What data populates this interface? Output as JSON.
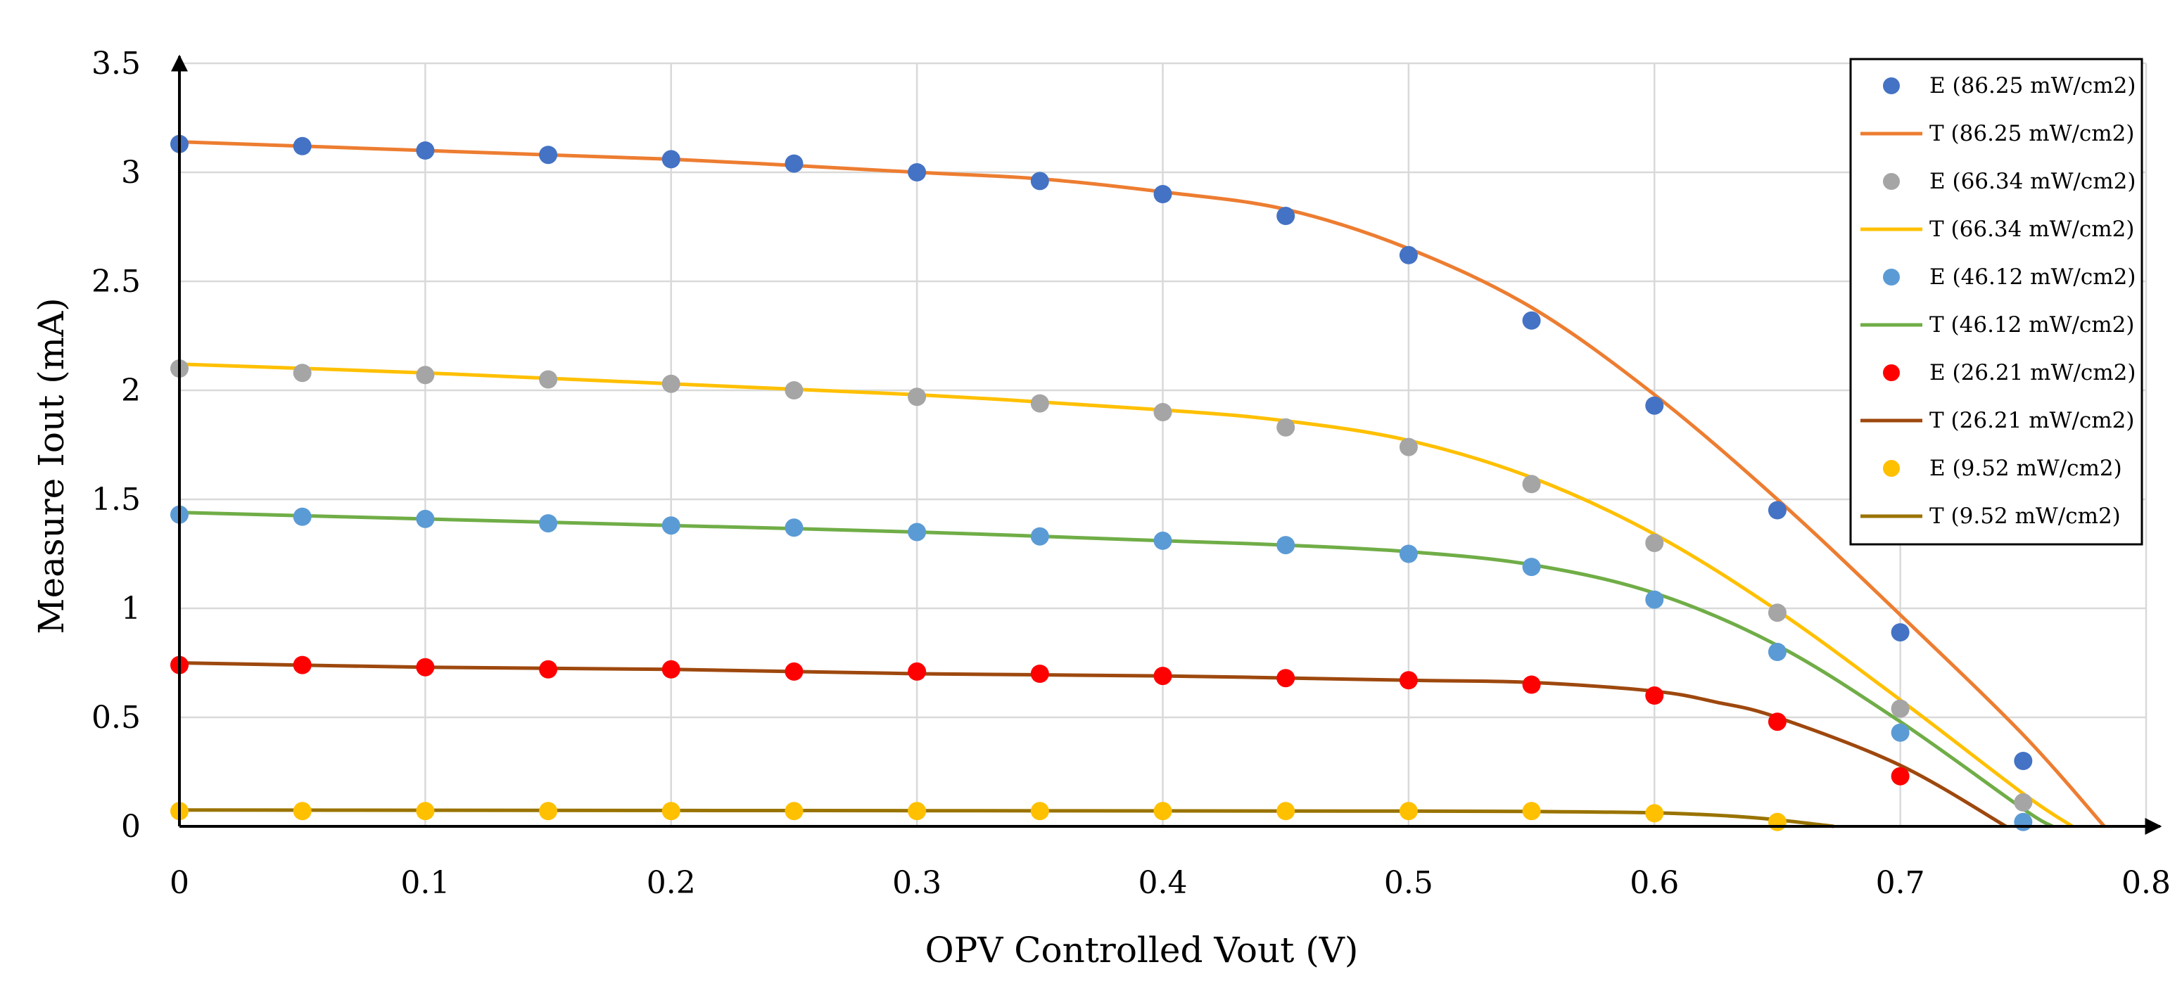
{
  "chart_data": {
    "type": "scatter",
    "title": "",
    "xlabel": "OPV Controlled Vout (V)",
    "ylabel": "Measure Iout (mA)",
    "xlim": [
      0,
      0.8
    ],
    "ylim": [
      0,
      3.5
    ],
    "x_ticks": [
      0,
      0.1,
      0.2,
      0.3,
      0.4,
      0.5,
      0.6,
      0.7,
      0.8
    ],
    "y_ticks": [
      0,
      0.5,
      1,
      1.5,
      2,
      2.5,
      3,
      3.5
    ],
    "x_tick_labels": [
      "0",
      "0.1",
      "0.2",
      "0.3",
      "0.4",
      "0.5",
      "0.6",
      "0.7",
      "0.8"
    ],
    "y_tick_labels": [
      "0",
      "0.5",
      "1",
      "1.5",
      "2",
      "2.5",
      "3",
      "3.5"
    ],
    "grid": true,
    "legend_position": "top-right",
    "series": [
      {
        "name": "E (86.25 mW/cm2)",
        "kind": "points",
        "color": "#4472C4",
        "x": [
          0,
          0.05,
          0.1,
          0.15,
          0.2,
          0.25,
          0.3,
          0.35,
          0.4,
          0.45,
          0.5,
          0.55,
          0.6,
          0.65,
          0.7,
          0.75
        ],
        "y": [
          3.13,
          3.12,
          3.1,
          3.08,
          3.06,
          3.04,
          3.0,
          2.96,
          2.9,
          2.8,
          2.62,
          2.32,
          1.93,
          1.45,
          0.89,
          0.3
        ]
      },
      {
        "name": "T (86.25 mW/cm2)",
        "kind": "line",
        "color": "#ED7D31",
        "x": [
          0,
          0.1,
          0.2,
          0.3,
          0.35,
          0.4,
          0.45,
          0.5,
          0.55,
          0.6,
          0.65,
          0.7,
          0.75,
          0.783
        ],
        "y": [
          3.14,
          3.1,
          3.06,
          3.0,
          2.97,
          2.91,
          2.83,
          2.65,
          2.38,
          1.98,
          1.5,
          0.97,
          0.42,
          0
        ]
      },
      {
        "name": "E (66.34 mW/cm2)",
        "kind": "points",
        "color": "#A5A5A5",
        "x": [
          0,
          0.05,
          0.1,
          0.15,
          0.2,
          0.25,
          0.3,
          0.35,
          0.4,
          0.45,
          0.5,
          0.55,
          0.6,
          0.65,
          0.7,
          0.75
        ],
        "y": [
          2.1,
          2.08,
          2.07,
          2.05,
          2.03,
          2.0,
          1.97,
          1.94,
          1.9,
          1.83,
          1.74,
          1.57,
          1.3,
          0.98,
          0.54,
          0.11
        ]
      },
      {
        "name": "T (66.34 mW/cm2)",
        "kind": "line",
        "color": "#FFC000",
        "x": [
          0,
          0.1,
          0.2,
          0.3,
          0.4,
          0.45,
          0.5,
          0.55,
          0.6,
          0.65,
          0.7,
          0.75,
          0.77
        ],
        "y": [
          2.12,
          2.08,
          2.03,
          1.98,
          1.91,
          1.86,
          1.77,
          1.6,
          1.34,
          0.99,
          0.58,
          0.15,
          0
        ]
      },
      {
        "name": "E (46.12 mW/cm2)",
        "kind": "points",
        "color": "#5B9BD5",
        "x": [
          0,
          0.05,
          0.1,
          0.15,
          0.2,
          0.25,
          0.3,
          0.35,
          0.4,
          0.45,
          0.5,
          0.55,
          0.6,
          0.65,
          0.7,
          0.75
        ],
        "y": [
          1.43,
          1.42,
          1.41,
          1.39,
          1.38,
          1.37,
          1.35,
          1.33,
          1.31,
          1.29,
          1.25,
          1.19,
          1.04,
          0.8,
          0.43,
          0.02
        ]
      },
      {
        "name": "T (46.12 mW/cm2)",
        "kind": "line",
        "color": "#70AD47",
        "x": [
          0,
          0.1,
          0.2,
          0.3,
          0.4,
          0.45,
          0.5,
          0.55,
          0.6,
          0.65,
          0.7,
          0.75,
          0.762
        ],
        "y": [
          1.44,
          1.41,
          1.38,
          1.35,
          1.31,
          1.29,
          1.26,
          1.2,
          1.07,
          0.83,
          0.48,
          0.08,
          0
        ]
      },
      {
        "name": "E (26.21 mW/cm2)",
        "kind": "points",
        "color": "#FF0000",
        "x": [
          0,
          0.05,
          0.1,
          0.15,
          0.2,
          0.25,
          0.3,
          0.35,
          0.4,
          0.45,
          0.5,
          0.55,
          0.6,
          0.65,
          0.7
        ],
        "y": [
          0.74,
          0.74,
          0.73,
          0.72,
          0.72,
          0.71,
          0.71,
          0.7,
          0.69,
          0.68,
          0.67,
          0.65,
          0.6,
          0.48,
          0.23
        ]
      },
      {
        "name": "T (26.21 mW/cm2)",
        "kind": "line",
        "color": "#9E480E",
        "x": [
          0,
          0.1,
          0.2,
          0.3,
          0.4,
          0.5,
          0.55,
          0.6,
          0.625,
          0.65,
          0.7,
          0.743
        ],
        "y": [
          0.75,
          0.73,
          0.72,
          0.7,
          0.69,
          0.67,
          0.66,
          0.62,
          0.57,
          0.5,
          0.28,
          0
        ]
      },
      {
        "name": "E (9.52 mW/cm2)",
        "kind": "points",
        "color": "#FFC000",
        "x": [
          0,
          0.05,
          0.1,
          0.15,
          0.2,
          0.25,
          0.3,
          0.35,
          0.4,
          0.45,
          0.5,
          0.55,
          0.6,
          0.65
        ],
        "y": [
          0.07,
          0.07,
          0.07,
          0.07,
          0.07,
          0.07,
          0.07,
          0.07,
          0.07,
          0.07,
          0.07,
          0.07,
          0.06,
          0.02
        ]
      },
      {
        "name": "T (9.52 mW/cm2)",
        "kind": "line",
        "color": "#997300",
        "x": [
          0,
          0.1,
          0.2,
          0.3,
          0.4,
          0.5,
          0.55,
          0.6,
          0.63,
          0.65,
          0.673
        ],
        "y": [
          0.075,
          0.074,
          0.073,
          0.072,
          0.071,
          0.07,
          0.068,
          0.062,
          0.048,
          0.03,
          0
        ]
      }
    ]
  }
}
